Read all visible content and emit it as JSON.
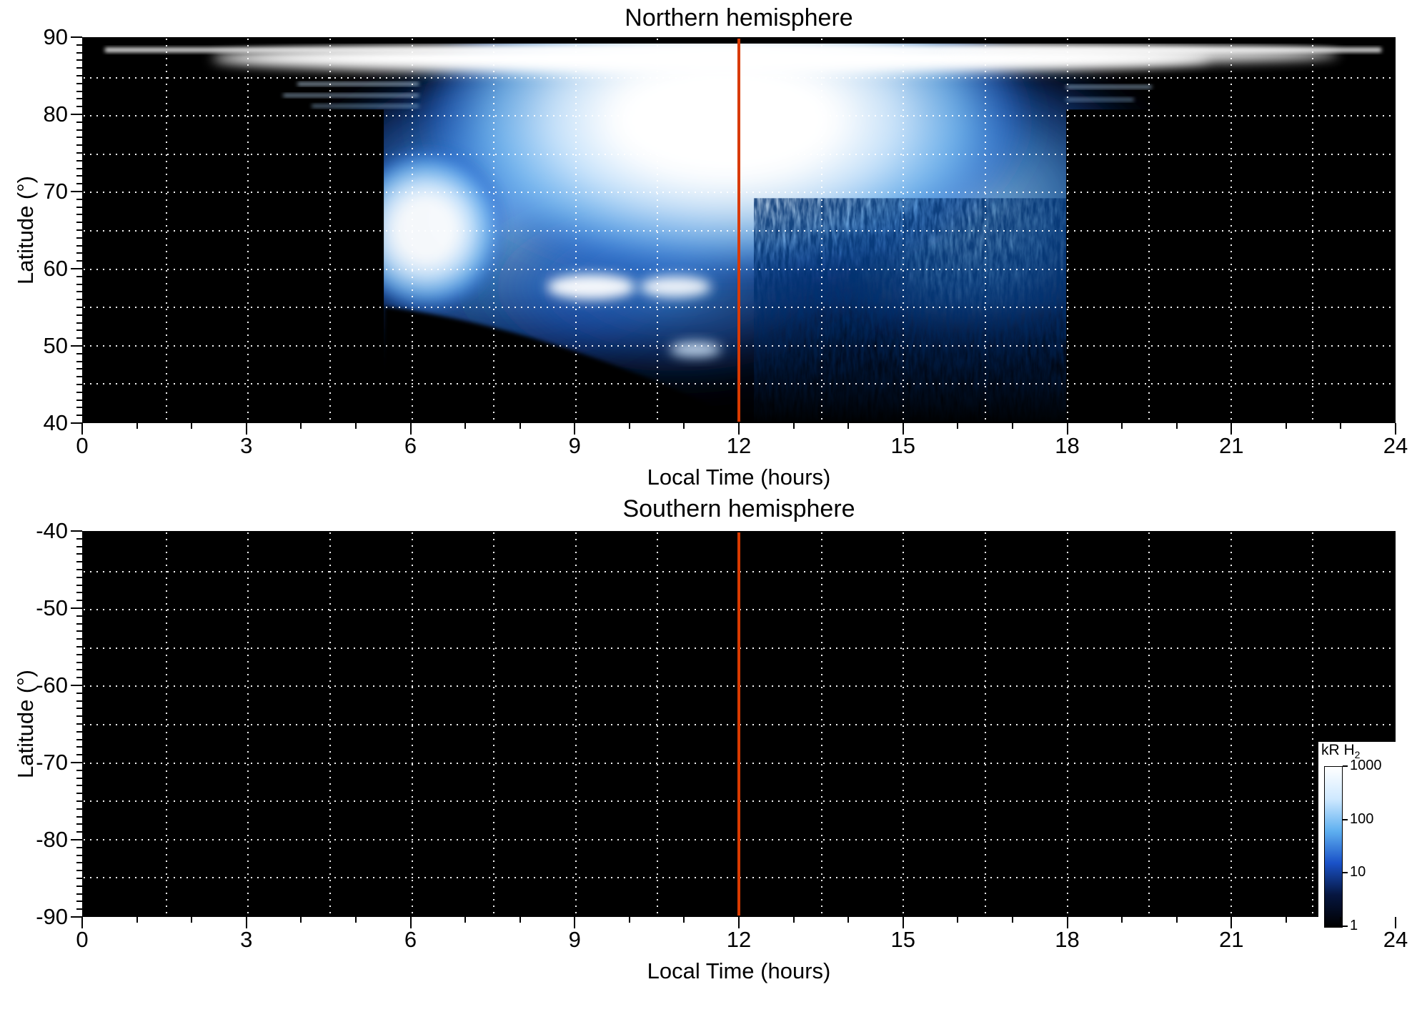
{
  "chart_data": [
    {
      "id": "north",
      "type": "heatmap",
      "title": "Northern hemisphere",
      "xlabel": "Local Time (hours)",
      "ylabel": "Latitude (°)",
      "x_range": [
        0,
        24
      ],
      "x_major_ticks": [
        0,
        3,
        6,
        9,
        12,
        15,
        18,
        21,
        24
      ],
      "x_minor_step": 1,
      "y_range": [
        40,
        90
      ],
      "y_major_ticks": [
        90,
        80,
        70,
        60,
        50,
        40
      ],
      "y_minor_step": 1,
      "grid": {
        "x_step": 1.5,
        "y_step": 5,
        "style": "white dotted"
      },
      "vline": {
        "x": 12,
        "color": "#d93a00"
      },
      "colormap": "black to blue to white, logarithmic kR H2 brightness",
      "features": [
        "bright dayside H2 airglow between ~05:30 and ~18:00 local time",
        "saturated white emission around local noon above ~75° latitude",
        "thin white polar band near 87–89° latitude at all local times",
        "bright patches near 06:20/65°, 09:20/57°, 10:50/57° and a faint one near 11:10/49°",
        "sharp emission boundaries near 05:30 and 18:00 below ~80° latitude",
        "no data (black) below a curve from ~05:30/54° down to 12:00/40° and on the nightside",
        "dark mottled navy region between ~12:30–18:00 and 50–75°"
      ]
    },
    {
      "id": "south",
      "type": "heatmap",
      "title": "Southern hemisphere",
      "xlabel": "Local Time (hours)",
      "ylabel": "Latitude (°)",
      "x_range": [
        0,
        24
      ],
      "x_major_ticks": [
        0,
        3,
        6,
        9,
        12,
        15,
        18,
        21,
        24
      ],
      "x_minor_step": 1,
      "y_range": [
        -90,
        -40
      ],
      "y_major_ticks": [
        -40,
        -50,
        -60,
        -70,
        -80,
        -90
      ],
      "y_minor_step": 1,
      "grid": {
        "x_step": 1.5,
        "y_step": 5,
        "style": "white dotted"
      },
      "vline": {
        "x": 12,
        "color": "#d93a00"
      },
      "colormap": "black to blue to white, logarithmic kR H2 brightness",
      "features": [
        "no data: entire panel is black"
      ]
    }
  ],
  "colorbar": {
    "label_main": "kR H",
    "label_sub": "2",
    "scale": "log",
    "ticks": [
      "1000",
      "100",
      "10",
      "1"
    ],
    "gradient": [
      "#ffffff",
      "#cfe9ff",
      "#5fb0f0",
      "#1a52c8",
      "#061640",
      "#000000"
    ]
  }
}
